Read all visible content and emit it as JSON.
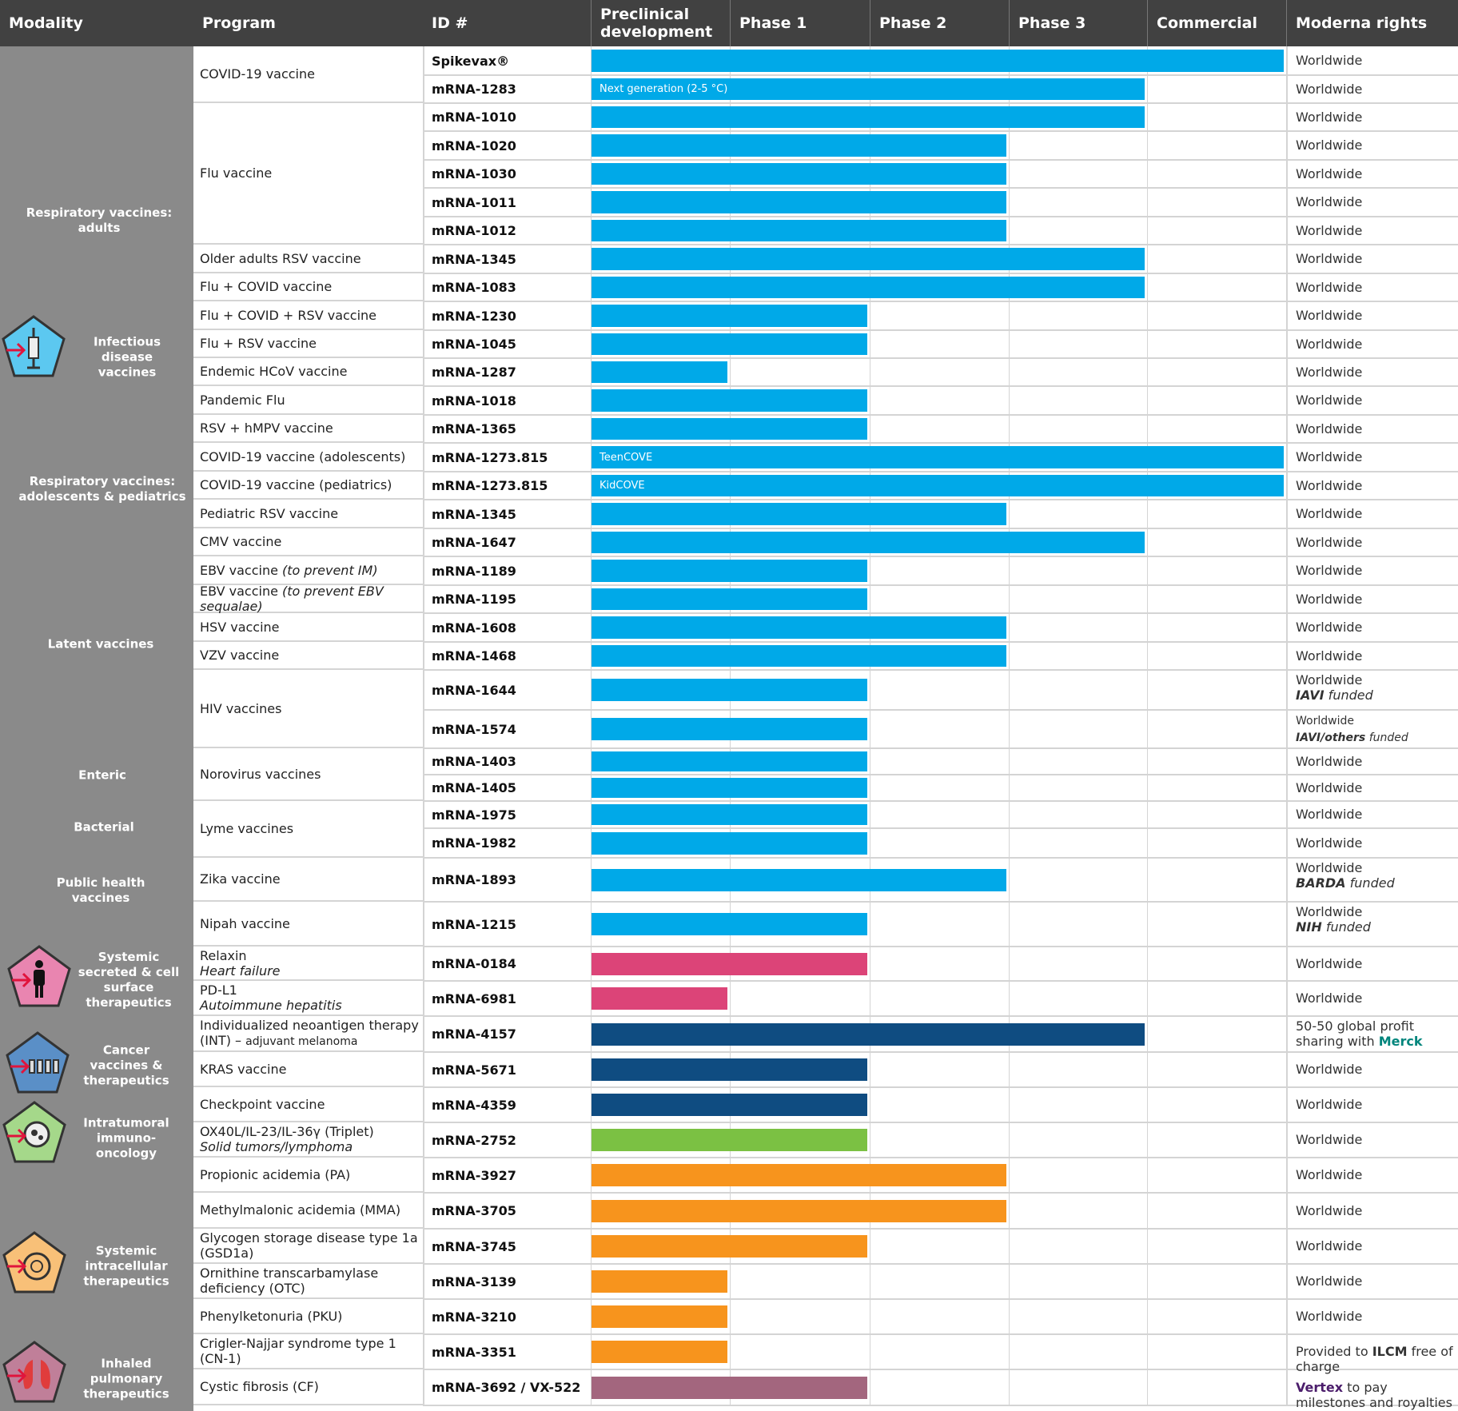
{
  "header": {
    "columns": [
      "Modality",
      "Program",
      "ID #",
      "Preclinical development",
      "Phase 1",
      "Phase 2",
      "Phase 3",
      "Commercial",
      "Moderna rights"
    ]
  },
  "stages": [
    "Preclinical",
    "Phase 1",
    "Phase 2",
    "Phase 3",
    "Commercial"
  ],
  "colors": {
    "header": "#414141",
    "modality_bg": "#8a8a8a",
    "infectious": "#00a9e8",
    "systemic_secreted": "#dc4478",
    "cancer": "#0f4c81",
    "intratumoral": "#7bc143",
    "intracellular": "#f7941d",
    "inhaled": "#a3667e",
    "merck": "#00857c",
    "vertex": "#4b1d6b"
  },
  "modalities": [
    {
      "label": "Respiratory vaccines:\nadults",
      "icon": ""
    },
    {
      "label": "Infectious\ndisease\nvaccines",
      "icon": "syringe-icon"
    },
    {
      "label": "Respiratory vaccines:\nadolescents & pediatrics",
      "icon": ""
    },
    {
      "label": "Latent vaccines",
      "icon": ""
    },
    {
      "label": "Enteric",
      "icon": ""
    },
    {
      "label": "Bacterial",
      "icon": ""
    },
    {
      "label": "Public health\nvaccines",
      "icon": ""
    },
    {
      "label": "Systemic\nsecreted & cell\nsurface\ntherapeutics",
      "icon": "person-icon"
    },
    {
      "label": "Cancer\nvaccines &\ntherapeutics",
      "icon": "cancer-vaccine-icon"
    },
    {
      "label": "Intratumoral\nimmuno-\noncology",
      "icon": "tumor-cell-icon"
    },
    {
      "label": "Systemic\nintracellular\ntherapeutics",
      "icon": "cell-icon"
    },
    {
      "label": "Inhaled\npulmonary\ntherapeutics",
      "icon": "lungs-icon"
    }
  ],
  "rows": [
    {
      "program": "COVID-19 vaccine",
      "span": 2,
      "id": "Spikevax®",
      "stage": "Commercial",
      "color": "infectious",
      "rights": [
        {
          "t": "Worldwide"
        }
      ]
    },
    {
      "id": "mRNA-1283",
      "stage": "Phase 3",
      "color": "infectious",
      "bar_label": "Next generation (2-5 °C)",
      "rights": [
        {
          "t": "Worldwide"
        }
      ]
    },
    {
      "program": "Flu vaccine",
      "span": 5,
      "id": "mRNA-1010",
      "stage": "Phase 3",
      "color": "infectious",
      "rights": [
        {
          "t": "Worldwide"
        }
      ]
    },
    {
      "id": "mRNA-1020",
      "stage": "Phase 2",
      "color": "infectious",
      "rights": [
        {
          "t": "Worldwide"
        }
      ]
    },
    {
      "id": "mRNA-1030",
      "stage": "Phase 2",
      "color": "infectious",
      "rights": [
        {
          "t": "Worldwide"
        }
      ]
    },
    {
      "id": "mRNA-1011",
      "stage": "Phase 2",
      "color": "infectious",
      "rights": [
        {
          "t": "Worldwide"
        }
      ]
    },
    {
      "id": "mRNA-1012",
      "stage": "Phase 2",
      "color": "infectious",
      "rights": [
        {
          "t": "Worldwide"
        }
      ]
    },
    {
      "program": "Older adults RSV vaccine",
      "span": 1,
      "id": "mRNA-1345",
      "stage": "Phase 3",
      "color": "infectious",
      "rights": [
        {
          "t": "Worldwide"
        }
      ]
    },
    {
      "program": "Flu + COVID vaccine",
      "span": 1,
      "id": "mRNA-1083",
      "stage": "Phase 3",
      "color": "infectious",
      "rights": [
        {
          "t": "Worldwide"
        }
      ]
    },
    {
      "program": "Flu + COVID + RSV vaccine",
      "span": 1,
      "id": "mRNA-1230",
      "stage": "Phase 1",
      "color": "infectious",
      "rights": [
        {
          "t": "Worldwide"
        }
      ]
    },
    {
      "program": "Flu + RSV vaccine",
      "span": 1,
      "id": "mRNA-1045",
      "stage": "Phase 1",
      "color": "infectious",
      "rights": [
        {
          "t": "Worldwide"
        }
      ]
    },
    {
      "program": "Endemic HCoV vaccine",
      "span": 1,
      "id": "mRNA-1287",
      "stage": "Preclinical",
      "color": "infectious",
      "rights": [
        {
          "t": "Worldwide"
        }
      ]
    },
    {
      "program": "Pandemic Flu",
      "span": 1,
      "id": "mRNA-1018",
      "stage": "Phase 1",
      "color": "infectious",
      "rights": [
        {
          "t": "Worldwide"
        }
      ]
    },
    {
      "program": "RSV + hMPV vaccine",
      "span": 1,
      "id": "mRNA-1365",
      "stage": "Phase 1",
      "color": "infectious",
      "rights": [
        {
          "t": "Worldwide"
        }
      ]
    },
    {
      "program": "COVID-19 vaccine (adolescents)",
      "span": 1,
      "id": "mRNA-1273.815",
      "stage": "Commercial",
      "color": "infectious",
      "bar_label": "TeenCOVE",
      "rights": [
        {
          "t": "Worldwide"
        }
      ]
    },
    {
      "program": "COVID-19 vaccine (pediatrics)",
      "span": 1,
      "id": "mRNA-1273.815",
      "stage": "Commercial",
      "color": "infectious",
      "bar_label": "KidCOVE",
      "rights": [
        {
          "t": "Worldwide"
        }
      ]
    },
    {
      "program": "Pediatric  RSV vaccine",
      "span": 1,
      "id": "mRNA-1345",
      "stage": "Phase 2",
      "color": "infectious",
      "rights": [
        {
          "t": "Worldwide"
        }
      ]
    },
    {
      "program": "CMV vaccine",
      "span": 1,
      "id": "mRNA-1647",
      "stage": "Phase 3",
      "color": "infectious",
      "rights": [
        {
          "t": "Worldwide"
        }
      ]
    },
    {
      "program": "EBV vaccine ",
      "program_italic": "(to prevent IM)",
      "span": 1,
      "id": "mRNA-1189",
      "stage": "Phase 1",
      "color": "infectious",
      "rights": [
        {
          "t": "Worldwide"
        }
      ]
    },
    {
      "program": "EBV vaccine ",
      "program_italic": "(to prevent EBV sequalae)",
      "span": 1,
      "id": "mRNA-1195",
      "stage": "Phase 1",
      "color": "infectious",
      "rights": [
        {
          "t": "Worldwide"
        }
      ]
    },
    {
      "program": "HSV vaccine",
      "span": 1,
      "id": "mRNA-1608",
      "stage": "Phase 2",
      "color": "infectious",
      "rights": [
        {
          "t": "Worldwide"
        }
      ]
    },
    {
      "program": "VZV vaccine",
      "span": 1,
      "id": "mRNA-1468",
      "stage": "Phase 2",
      "color": "infectious",
      "rights": [
        {
          "t": "Worldwide"
        }
      ]
    },
    {
      "program": "HIV vaccines",
      "span": 2,
      "id": "mRNA-1644",
      "stage": "Phase 1",
      "color": "infectious",
      "rights": [
        {
          "t": "Worldwide"
        },
        {
          "t": "IAVI",
          "b": true,
          "i": true,
          "br": true
        },
        {
          "t": " funded",
          "i": true
        }
      ]
    },
    {
      "id": "mRNA-1574",
      "stage": "Phase 1",
      "color": "infectious",
      "rights": [
        {
          "t": "Worldwide",
          "s": true
        },
        {
          "t": "IAVI/others",
          "b": true,
          "i": true,
          "br": true,
          "s": true
        },
        {
          "t": " funded",
          "i": true,
          "s": true
        }
      ]
    },
    {
      "program": "Norovirus vaccines",
      "span": 2,
      "id": "mRNA-1403",
      "stage": "Phase 1",
      "color": "infectious",
      "rights": [
        {
          "t": "Worldwide"
        }
      ]
    },
    {
      "id": "mRNA-1405",
      "stage": "Phase 1",
      "color": "infectious",
      "rights": [
        {
          "t": "Worldwide"
        }
      ]
    },
    {
      "program": "Lyme vaccines",
      "span": 2,
      "id": "mRNA-1975",
      "stage": "Phase 1",
      "color": "infectious",
      "rights": [
        {
          "t": "Worldwide"
        }
      ]
    },
    {
      "id": "mRNA-1982",
      "stage": "Phase 1",
      "color": "infectious",
      "rights": [
        {
          "t": "Worldwide"
        }
      ]
    },
    {
      "program": "Zika vaccine",
      "span": 1,
      "id": "mRNA-1893",
      "stage": "Phase 2",
      "color": "infectious",
      "rights": [
        {
          "t": "Worldwide"
        },
        {
          "t": "BARDA",
          "b": true,
          "i": true,
          "br": true
        },
        {
          "t": " funded",
          "i": true
        }
      ]
    },
    {
      "program": "Nipah vaccine",
      "span": 1,
      "id": "mRNA-1215",
      "stage": "Phase 1",
      "color": "infectious",
      "rights": [
        {
          "t": "Worldwide"
        },
        {
          "t": "NIH",
          "b": true,
          "i": true,
          "br": true
        },
        {
          "t": " funded",
          "i": true
        }
      ]
    },
    {
      "program": "Relaxin",
      "program_sub": "Heart failure",
      "span": 1,
      "id": "mRNA-0184",
      "stage": "Phase 1",
      "color": "systemic_secreted",
      "rights": [
        {
          "t": "Worldwide"
        }
      ]
    },
    {
      "program": "PD-L1",
      "program_sub": "Autoimmune  hepatitis",
      "span": 1,
      "id": "mRNA-6981",
      "stage": "Preclinical",
      "color": "systemic_secreted",
      "rights": [
        {
          "t": "Worldwide"
        }
      ]
    },
    {
      "program": "Individualized neoantigen therapy (INT) – ",
      "program_small": "adjuvant melanoma",
      "span": 1,
      "id": "mRNA-4157",
      "stage": "Phase 3",
      "color": "cancer",
      "rights": [
        {
          "t": "50-50 global profit sharing with "
        },
        {
          "t": "Merck",
          "b": true,
          "c": "merck"
        }
      ]
    },
    {
      "program": "KRAS vaccine",
      "span": 1,
      "id": "mRNA-5671",
      "stage": "Phase 1",
      "color": "cancer",
      "rights": [
        {
          "t": "Worldwide"
        }
      ]
    },
    {
      "program": "Checkpoint vaccine",
      "span": 1,
      "id": "mRNA-4359",
      "stage": "Phase 1",
      "color": "cancer",
      "rights": [
        {
          "t": "Worldwide"
        }
      ]
    },
    {
      "program": "OX40L/IL-23/IL-36γ  (Triplet)",
      "program_sub": "Solid tumors/lymphoma",
      "span": 1,
      "id": "mRNA-2752",
      "stage": "Phase 1",
      "color": "intratumoral",
      "rights": [
        {
          "t": "Worldwide"
        }
      ]
    },
    {
      "program": "Propionic  acidemia  (PA)",
      "span": 1,
      "id": "mRNA-3927",
      "stage": "Phase 2",
      "color": "intracellular",
      "rights": [
        {
          "t": "Worldwide"
        }
      ]
    },
    {
      "program": "Methylmalonic  acidemia  (MMA)",
      "span": 1,
      "id": "mRNA-3705",
      "stage": "Phase 2",
      "color": "intracellular",
      "rights": [
        {
          "t": "Worldwide"
        }
      ]
    },
    {
      "program": "Glycogen  storage disease type 1a (GSD1a)",
      "span": 1,
      "id": "mRNA-3745",
      "stage": "Phase 1",
      "color": "intracellular",
      "rights": [
        {
          "t": "Worldwide"
        }
      ]
    },
    {
      "program": "Ornithine  transcarbamylase deficiency  (OTC)",
      "span": 1,
      "id": "mRNA-3139",
      "stage": "Preclinical",
      "color": "intracellular",
      "rights": [
        {
          "t": "Worldwide"
        }
      ]
    },
    {
      "program": "Phenylketonuria  (PKU)",
      "span": 1,
      "id": "mRNA-3210",
      "stage": "Preclinical",
      "color": "intracellular",
      "rights": [
        {
          "t": "Worldwide"
        }
      ]
    },
    {
      "program": "Crigler-Najjar  syndrome  type 1 (CN-1)",
      "span": 1,
      "id": "mRNA-3351",
      "stage": "Preclinical",
      "color": "intracellular",
      "rights": [
        {
          "t": "Provided to "
        },
        {
          "t": "ILCM",
          "b": true
        },
        {
          "t": " free of charge"
        }
      ]
    },
    {
      "program": "Cystic fibrosis (CF)",
      "span": 1,
      "id": "mRNA-3692 / VX-522",
      "stage": "Phase 1",
      "color": "inhaled",
      "rights": [
        {
          "t": "Vertex",
          "b": true,
          "c": "vertex"
        },
        {
          "t": " to pay milestones and royalties"
        }
      ]
    }
  ]
}
